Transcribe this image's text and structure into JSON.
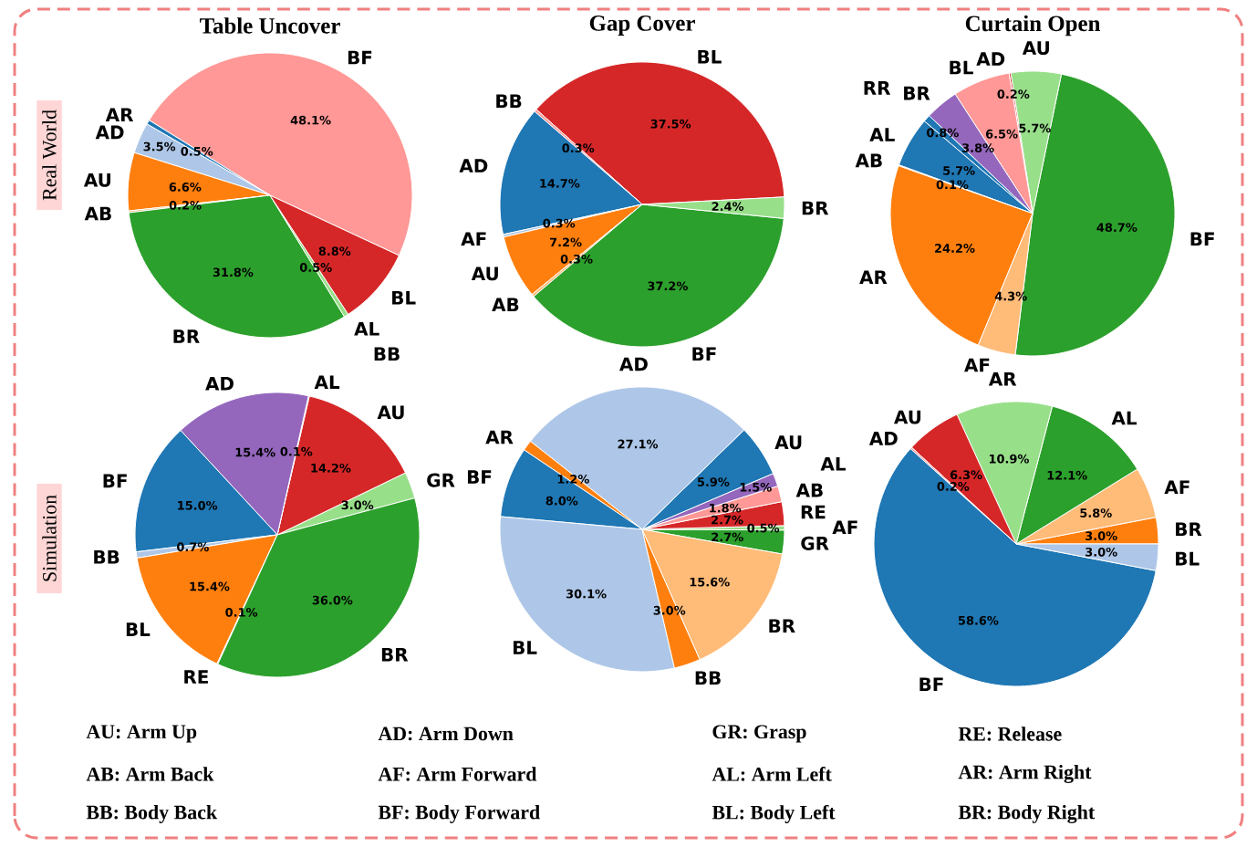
{
  "chart_data": [
    {
      "type": "pie",
      "title": "Table Uncover",
      "annotations": [
        "Real World"
      ],
      "categories": [
        "BF",
        "AR",
        "AD",
        "AU",
        "AB",
        "BR",
        "AL",
        "BB",
        "BL"
      ],
      "values": [
        48.1,
        0.5,
        3.5,
        6.6,
        0.2,
        31.8,
        0,
        0.5,
        8.8
      ],
      "value_labels": [
        "48.1%",
        "0.5%",
        "3.5%",
        "6.6%",
        "0.2%",
        "31.8%",
        null,
        "0.5%",
        "8.8%"
      ],
      "colors": [
        "#ff9896",
        "#1f77b4",
        "#aec7e8",
        "#ff7f0e",
        "#ffbb78",
        "#2ca02c",
        "#9467bd",
        "#98df8a",
        "#d62728"
      ]
    },
    {
      "type": "pie",
      "title": "Gap Cover",
      "categories": [
        "BL",
        "BB",
        "AD",
        "AF",
        "AU",
        "AB",
        "BF",
        "BR"
      ],
      "values": [
        37.5,
        0.3,
        14.7,
        0.3,
        7.2,
        0.3,
        37.2,
        2.4
      ],
      "value_labels": [
        "37.5%",
        "0.3%",
        "14.7%",
        "0.3%",
        "7.2%",
        "0.3%",
        "37.2%",
        "2.4%"
      ],
      "colors": [
        "#d62728",
        "#ff9896",
        "#1f77b4",
        "#aec7e8",
        "#ff7f0e",
        "#ffbb78",
        "#2ca02c",
        "#98df8a"
      ]
    },
    {
      "type": "pie",
      "title": "Curtain Open",
      "categories": [
        "BF",
        "AU",
        "AD",
        "BL",
        "BR",
        "RR",
        "AL",
        "AB",
        "AR",
        "AF"
      ],
      "values": [
        48.7,
        5.7,
        0.2,
        6.5,
        3.8,
        0.8,
        5.7,
        0.1,
        24.2,
        4.3
      ],
      "value_labels": [
        "48.7%",
        "5.7%",
        "0.2%",
        "6.5%",
        "3.8%",
        "0.8%",
        "5.7%",
        "0.1%",
        "24.2%",
        "4.3%"
      ],
      "colors": [
        "#2ca02c",
        "#98df8a",
        "#d62728",
        "#ff9896",
        "#9467bd",
        "#1f77b4",
        "#1f77b4",
        "#aec7e8",
        "#ff7f0e",
        "#ffbb78"
      ]
    },
    {
      "type": "pie",
      "annotations": [
        "Simulation"
      ],
      "categories": [
        "GR",
        "AU",
        "AL",
        "AD",
        "BF",
        "BB",
        "BL",
        "RE",
        "BR"
      ],
      "values": [
        3.0,
        14.2,
        0.1,
        15.4,
        15.0,
        0.7,
        15.4,
        0.1,
        36.0
      ],
      "value_labels": [
        "3.0%",
        "14.2%",
        "0.1%",
        "15.4%",
        "15.0%",
        "0.7%",
        "15.4%",
        "0.1%",
        "36.0%"
      ],
      "colors": [
        "#98df8a",
        "#d62728",
        "#ff9896",
        "#9467bd",
        "#1f77b4",
        "#aec7e8",
        "#ff7f0e",
        "#ffbb78",
        "#2ca02c"
      ]
    },
    {
      "type": "pie",
      "categories": [
        "GR",
        "AF",
        "RE",
        "AB",
        "AL",
        "AU",
        "AD",
        "AR",
        "BF",
        "BL",
        "BB",
        "BR"
      ],
      "values": [
        2.7,
        0.5,
        2.7,
        1.8,
        1.5,
        5.9,
        27.1,
        1.2,
        8.0,
        30.1,
        3.0,
        15.6
      ],
      "value_labels": [
        "2.7%",
        "0.5%",
        "2.7%",
        "1.8%",
        "1.5%",
        "5.9%",
        "27.1%",
        "1.2%",
        "8.0%",
        "30.1%",
        "3.0%",
        "15.6%"
      ],
      "colors": [
        "#2ca02c",
        "#98df8a",
        "#d62728",
        "#ff9896",
        "#9467bd",
        "#1f77b4",
        "#aec7e8",
        "#ff7f0e",
        "#1f77b4",
        "#aec7e8",
        "#ff7f0e",
        "#ffbb78"
      ]
    },
    {
      "type": "pie",
      "categories": [
        "BR",
        "AF",
        "AL",
        "AR",
        "AU",
        "AD",
        "BF",
        "BL"
      ],
      "values": [
        3.0,
        5.8,
        12.1,
        10.9,
        6.3,
        0.2,
        58.6,
        3.0
      ],
      "value_labels": [
        "3.0%",
        "5.8%",
        "12.1%",
        "10.9%",
        "6.3%",
        "0.2%",
        "58.6%",
        "3.0%"
      ],
      "colors": [
        "#ff7f0e",
        "#ffbb78",
        "#2ca02c",
        "#98df8a",
        "#d62728",
        "#ff9896",
        "#1f77b4",
        "#aec7e8"
      ]
    },
    {
      "type": "other",
      "annotations": [
        "AU: Arm Up",
        "AD: Arm Down",
        "GR: Grasp",
        "RE: Release",
        "AB: Arm Back",
        "AF: Arm Forward",
        "AL: Arm Left",
        "AR: Arm Right",
        "BB: Body Back",
        "BF: Body Forward",
        "BL: Body Left",
        "BR: Body Right"
      ]
    }
  ]
}
